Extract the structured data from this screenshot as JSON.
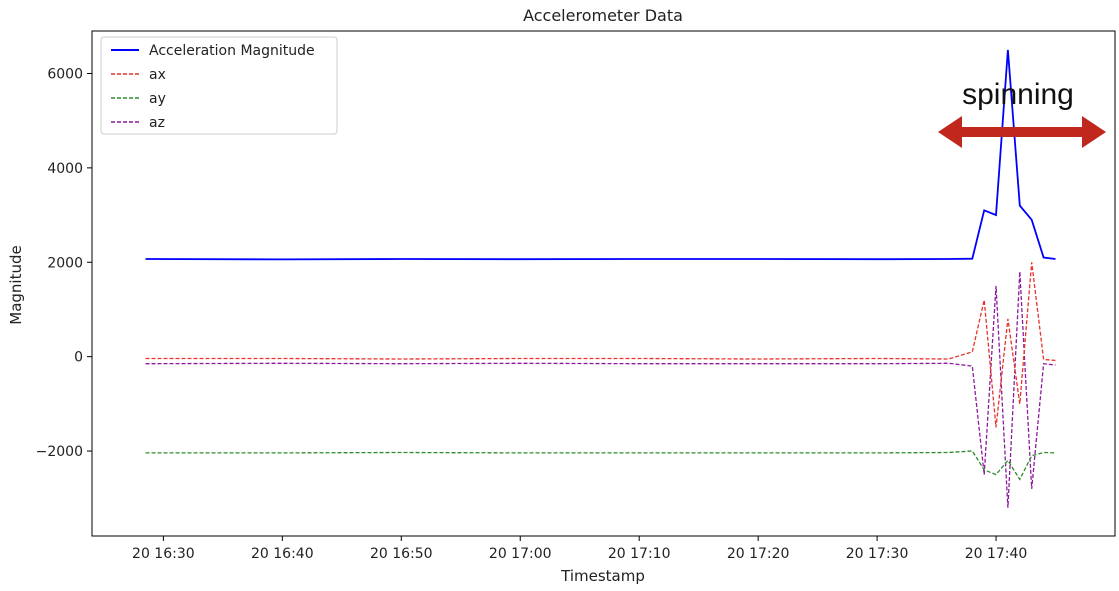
{
  "chart_data": {
    "type": "line",
    "title": "Accelerometer Data",
    "xlabel": "Timestamp",
    "ylabel": "Magnitude",
    "x_tick_labels": [
      "20 16:30",
      "20 16:40",
      "20 16:50",
      "20 17:00",
      "20 17:10",
      "20 17:20",
      "20 17:30",
      "20 17:40"
    ],
    "x_ticks_min": [
      0,
      10,
      20,
      30,
      40,
      50,
      60,
      70
    ],
    "xlim_min": [
      -6,
      80
    ],
    "y_ticks": [
      -2000,
      0,
      2000,
      4000,
      6000
    ],
    "y_tick_labels": [
      "−2000",
      "0",
      "2000",
      "4000",
      "6000"
    ],
    "ylim": [
      -3800,
      6900
    ],
    "legend_position": "upper-left",
    "grid": false,
    "series": [
      {
        "name": "Acceleration Magnitude",
        "color": "#0000ff",
        "style": "solid",
        "x_min": [
          -1.5,
          10,
          20,
          30,
          40,
          50,
          60,
          66,
          68,
          69,
          70,
          71,
          72,
          73,
          74,
          75
        ],
        "values": [
          2070,
          2060,
          2070,
          2065,
          2070,
          2070,
          2065,
          2070,
          2075,
          3100,
          3000,
          6500,
          3200,
          2900,
          2100,
          2070
        ]
      },
      {
        "name": "ax",
        "color": "#e8322a",
        "style": "dashed",
        "x_min": [
          -1.5,
          10,
          20,
          30,
          40,
          50,
          60,
          66,
          68,
          69,
          70,
          71,
          72,
          73,
          74,
          75
        ],
        "values": [
          -40,
          -40,
          -50,
          -40,
          -40,
          -50,
          -40,
          -50,
          100,
          1200,
          -1500,
          800,
          -1000,
          2000,
          -60,
          -80
        ]
      },
      {
        "name": "ay",
        "color": "#2e8b2e",
        "style": "dashed",
        "x_min": [
          -1.5,
          10,
          20,
          30,
          40,
          50,
          60,
          66,
          68,
          69,
          70,
          71,
          72,
          73,
          74,
          75
        ],
        "values": [
          -2040,
          -2040,
          -2030,
          -2040,
          -2040,
          -2040,
          -2040,
          -2030,
          -2000,
          -2400,
          -2500,
          -2200,
          -2600,
          -2100,
          -2030,
          -2040
        ]
      },
      {
        "name": "az",
        "color": "#8b1a9b",
        "style": "dashed",
        "x_min": [
          -1.5,
          10,
          20,
          30,
          40,
          50,
          60,
          66,
          68,
          69,
          70,
          71,
          72,
          73,
          74,
          75
        ],
        "values": [
          -150,
          -140,
          -150,
          -140,
          -150,
          -150,
          -150,
          -140,
          -200,
          -2500,
          1500,
          -3200,
          1800,
          -2800,
          -150,
          -180
        ]
      }
    ],
    "annotation": {
      "text": "spinning",
      "arrow_x_min": [
        68,
        80
      ],
      "arrow_color": "#c0281d"
    }
  }
}
